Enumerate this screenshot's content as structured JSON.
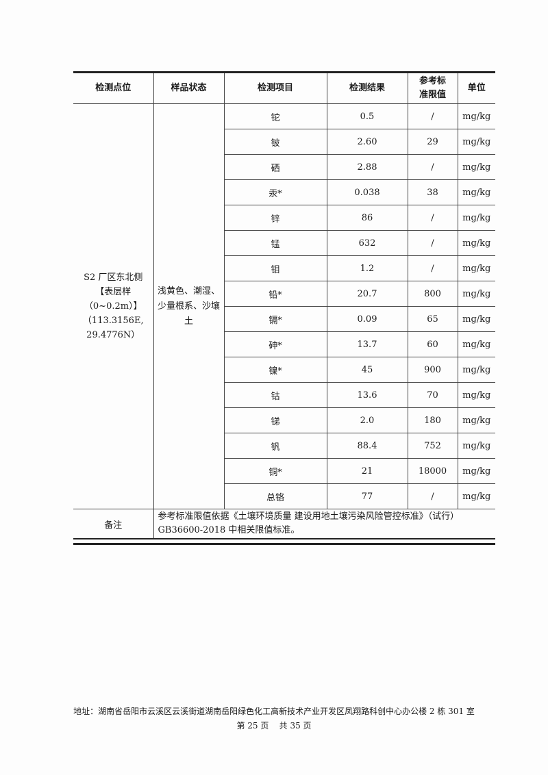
{
  "table": {
    "headers": [
      "检测点位",
      "样品状态",
      "检测项目",
      "检测结果",
      "参考标准限值",
      "单位"
    ],
    "location": [
      "S2 厂区东北侧",
      "【表层样",
      "（0~0.2m）】",
      "（113.3156E,",
      "29.4776N）"
    ],
    "sample_state": [
      "浅黄色、潮湿、",
      "少量根系、沙壤",
      "土"
    ],
    "rows": [
      {
        "item": "铊",
        "result": "0.5",
        "limit": "/",
        "unit": "mg/kg"
      },
      {
        "item": "铍",
        "result": "2.60",
        "limit": "29",
        "unit": "mg/kg"
      },
      {
        "item": "硒",
        "result": "2.88",
        "limit": "/",
        "unit": "mg/kg"
      },
      {
        "item": "汞*",
        "result": "0.038",
        "limit": "38",
        "unit": "mg/kg"
      },
      {
        "item": "锌",
        "result": "86",
        "limit": "/",
        "unit": "mg/kg"
      },
      {
        "item": "锰",
        "result": "632",
        "limit": "/",
        "unit": "mg/kg"
      },
      {
        "item": "钼",
        "result": "1.2",
        "limit": "/",
        "unit": "mg/kg"
      },
      {
        "item": "铅*",
        "result": "20.7",
        "limit": "800",
        "unit": "mg/kg"
      },
      {
        "item": "镉*",
        "result": "0.09",
        "limit": "65",
        "unit": "mg/kg"
      },
      {
        "item": "砷*",
        "result": "13.7",
        "limit": "60",
        "unit": "mg/kg"
      },
      {
        "item": "镍*",
        "result": "45",
        "limit": "900",
        "unit": "mg/kg"
      },
      {
        "item": "钴",
        "result": "13.6",
        "limit": "70",
        "unit": "mg/kg"
      },
      {
        "item": "锑",
        "result": "2.0",
        "limit": "180",
        "unit": "mg/kg"
      },
      {
        "item": "钒",
        "result": "88.4",
        "limit": "752",
        "unit": "mg/kg"
      },
      {
        "item": "铜*",
        "result": "21",
        "limit": "18000",
        "unit": "mg/kg"
      },
      {
        "item": "总铬",
        "result": "77",
        "limit": "/",
        "unit": "mg/kg"
      }
    ],
    "remark_label": "备注",
    "remark_lines": [
      "参考标准限值依据《土壤环境质量 建设用地土壤污染风险管控标准》（试行）",
      "GB36600-2018 中相关限值标准。"
    ]
  },
  "footer": {
    "address": "地址：湖南省岳阳市云溪区云溪街道湖南岳阳绿色化工高新技术产业开发区凤翔路科创中心办公楼 2 栋 301 室",
    "page": "第 25 页    共 35 页"
  }
}
